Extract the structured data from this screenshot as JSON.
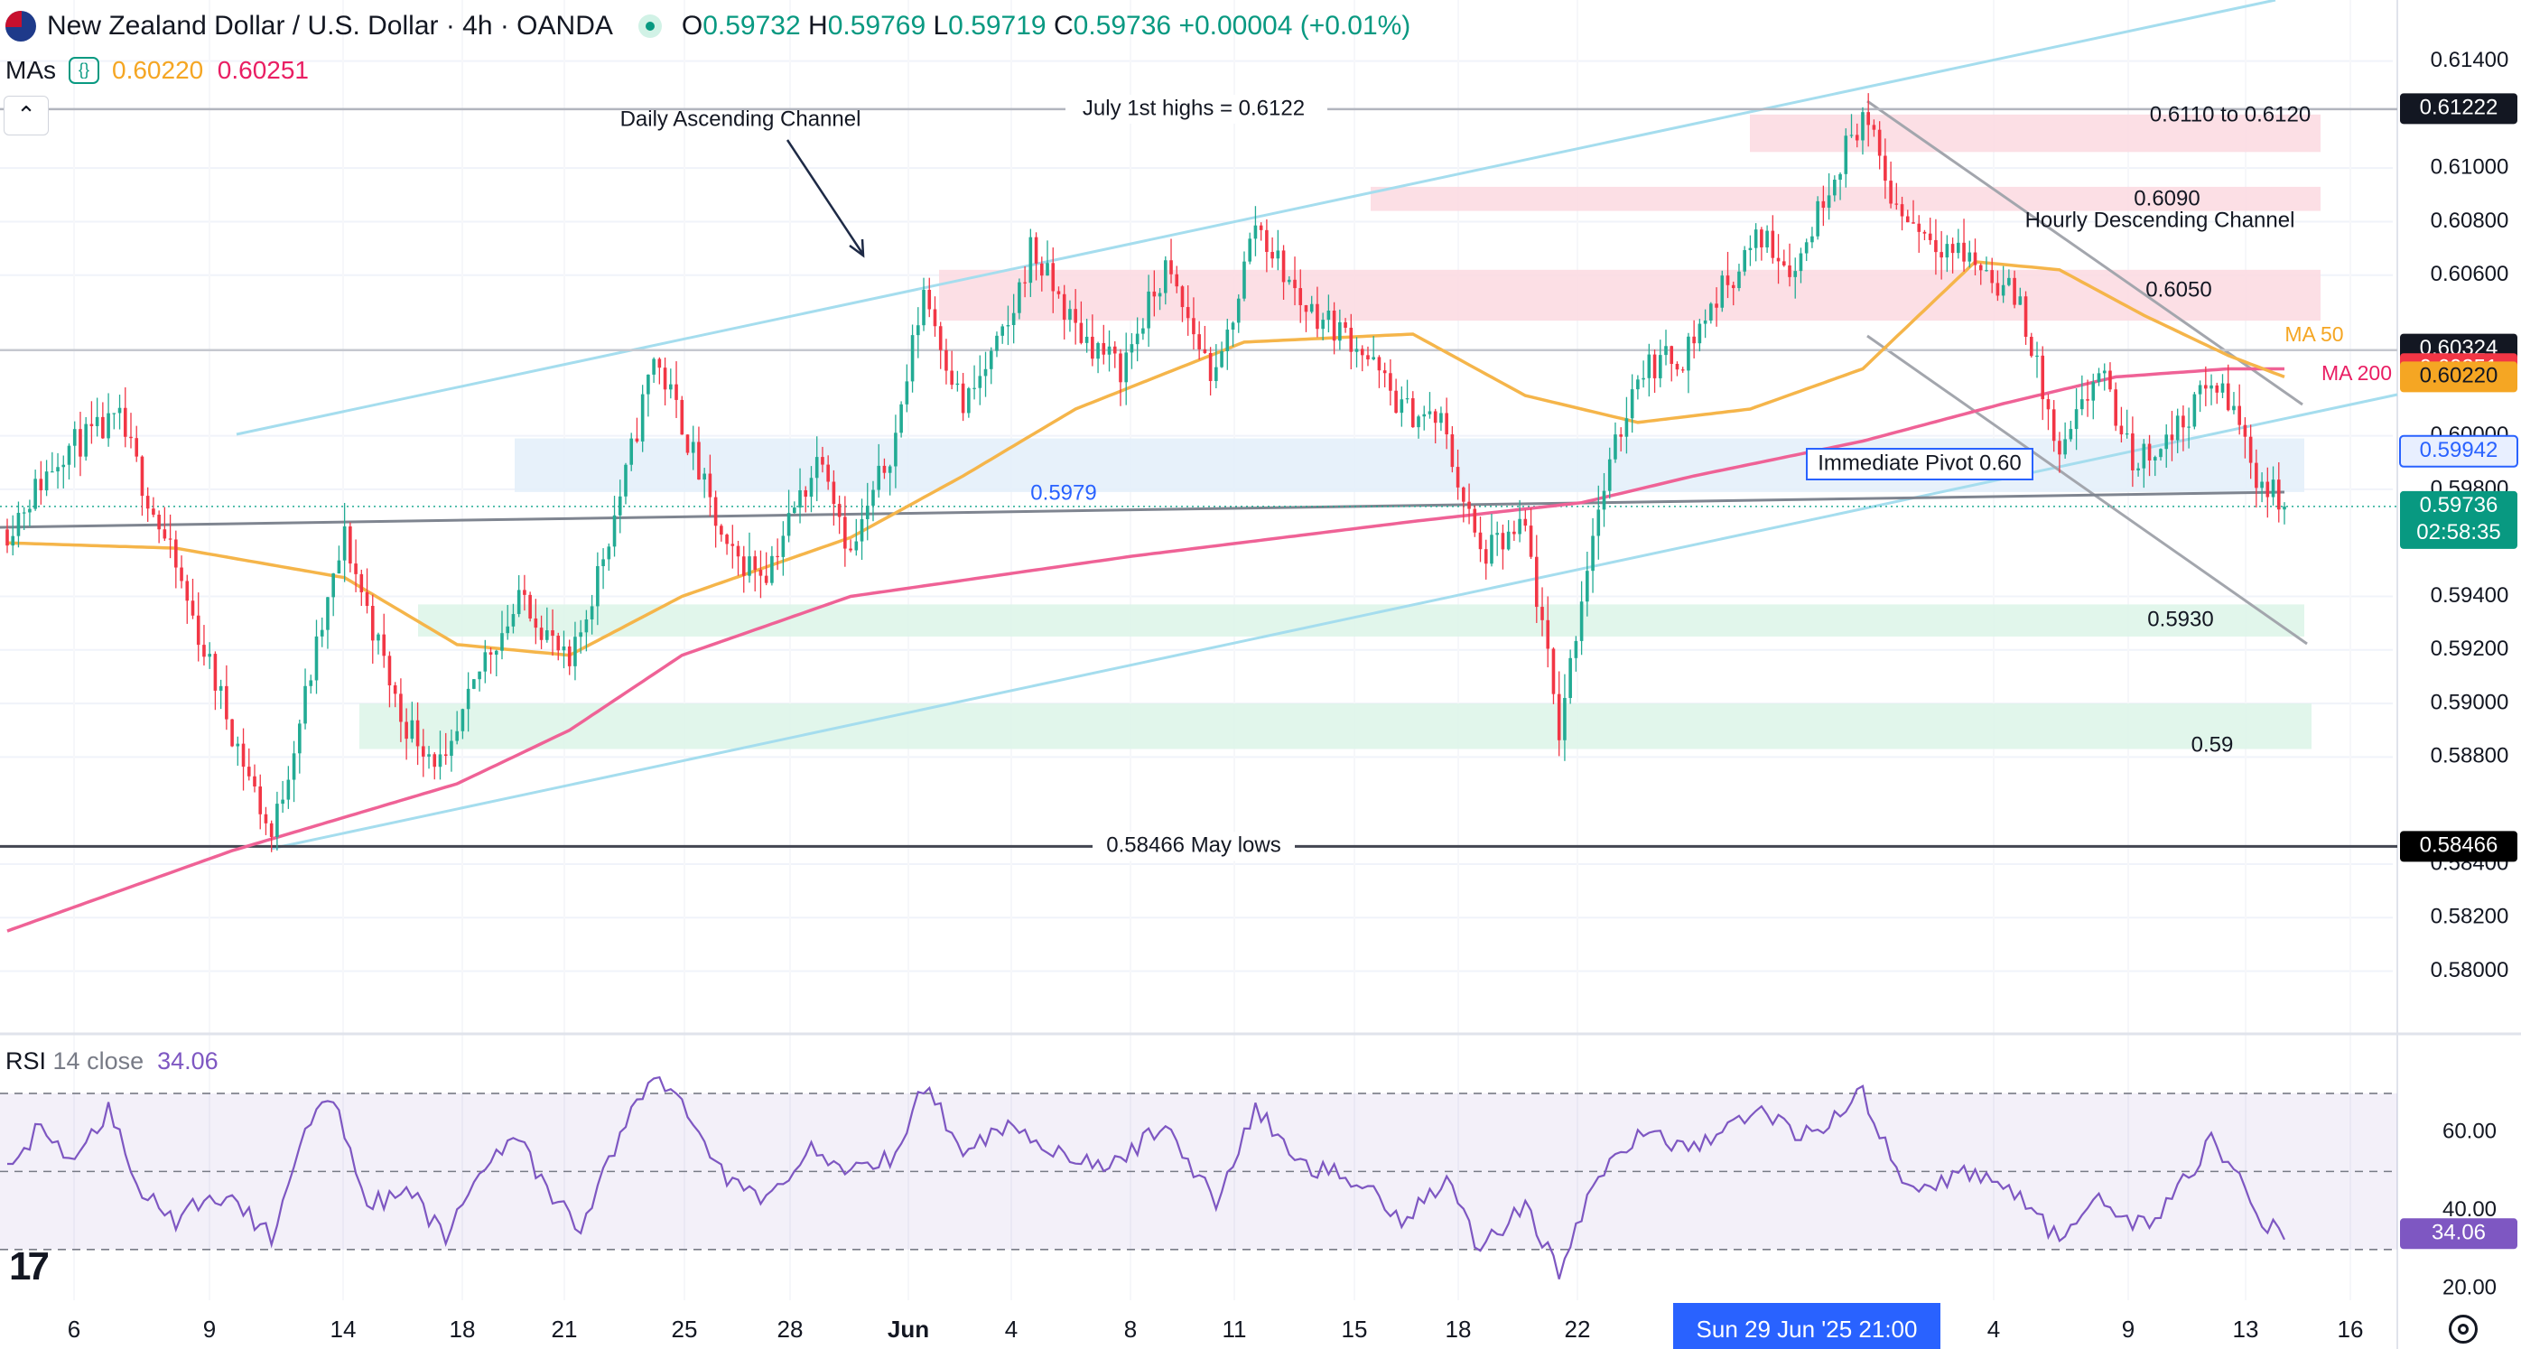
{
  "header": {
    "title": "New Zealand Dollar / U.S. Dollar · 4h · OANDA",
    "o_label": "O",
    "o": "0.59732",
    "h_label": "H",
    "h": "0.59769",
    "l_label": "L",
    "l": "0.59719",
    "c_label": "C",
    "c": "0.59736",
    "change": "+0.00004 (+0.01%)",
    "ma_label": "MAs",
    "ma50_value": "0.60220",
    "ma200_value": "0.60251"
  },
  "rsi": {
    "label": "RSI",
    "params": "14 close",
    "value": "34.06"
  },
  "colors": {
    "up": "#22ab94",
    "down": "#f23645",
    "ma50": "#f5b54a",
    "ma200": "#ef6296",
    "channel": "#a5ddee",
    "rsi": "#7e57c2"
  },
  "icons": {
    "collapse": "chevron-up-icon",
    "settings": "gear-icon",
    "logo": "tradingview-logo-icon",
    "visibility": "eye-icon"
  },
  "chart_data": [
    {
      "type": "candlestick",
      "title": "New Zealand Dollar / U.S. Dollar · 4h · OANDA",
      "x_tick_labels": [
        "6",
        "9",
        "14",
        "18",
        "21",
        "25",
        "28",
        "Jun",
        "4",
        "8",
        "11",
        "15",
        "18",
        "22",
        "4",
        "9",
        "13",
        "16"
      ],
      "crosshair_date_label": "Sun 29 Jun '25   21:00",
      "y_tick_labels": [
        "0.61400",
        "0.61000",
        "0.60800",
        "0.60600",
        "0.60000",
        "0.59800",
        "0.59400",
        "0.59200",
        "0.59000",
        "0.58800",
        "0.58400",
        "0.58200",
        "0.58000"
      ],
      "ylim": [
        0.5785,
        0.6152
      ],
      "price_path_anchors": [
        [
          0,
          0.5965
        ],
        [
          10,
          0.5995
        ],
        [
          20,
          0.6005
        ],
        [
          30,
          0.595
        ],
        [
          40,
          0.589
        ],
        [
          47,
          0.585
        ],
        [
          55,
          0.592
        ],
        [
          60,
          0.5962
        ],
        [
          70,
          0.5895
        ],
        [
          78,
          0.5875
        ],
        [
          85,
          0.5918
        ],
        [
          92,
          0.594
        ],
        [
          100,
          0.5912
        ],
        [
          110,
          0.5985
        ],
        [
          115,
          0.603
        ],
        [
          120,
          0.6005
        ],
        [
          128,
          0.5955
        ],
        [
          135,
          0.595
        ],
        [
          145,
          0.5995
        ],
        [
          150,
          0.5955
        ],
        [
          158,
          0.6
        ],
        [
          163,
          0.6055
        ],
        [
          170,
          0.601
        ],
        [
          178,
          0.604
        ],
        [
          182,
          0.607
        ],
        [
          190,
          0.604
        ],
        [
          198,
          0.6025
        ],
        [
          206,
          0.6062
        ],
        [
          215,
          0.602
        ],
        [
          222,
          0.608
        ],
        [
          230,
          0.605
        ],
        [
          240,
          0.6035
        ],
        [
          248,
          0.601
        ],
        [
          255,
          0.6005
        ],
        [
          262,
          0.5955
        ],
        [
          270,
          0.5965
        ],
        [
          276,
          0.589
        ],
        [
          282,
          0.5965
        ],
        [
          290,
          0.6025
        ],
        [
          298,
          0.603
        ],
        [
          305,
          0.6055
        ],
        [
          312,
          0.6075
        ],
        [
          318,
          0.6062
        ],
        [
          324,
          0.6095
        ],
        [
          330,
          0.612
        ],
        [
          336,
          0.6085
        ],
        [
          342,
          0.6075
        ],
        [
          350,
          0.6065
        ],
        [
          358,
          0.605
        ],
        [
          365,
          0.599
        ],
        [
          372,
          0.6025
        ],
        [
          378,
          0.599
        ],
        [
          385,
          0.6
        ],
        [
          392,
          0.602
        ],
        [
          396,
          0.601
        ],
        [
          400,
          0.5985
        ],
        [
          405,
          0.5974
        ]
      ],
      "ma50": {
        "name": "MA 50",
        "values": [
          [
            0,
            0.596
          ],
          [
            30,
            0.5958
          ],
          [
            60,
            0.5947
          ],
          [
            80,
            0.5922
          ],
          [
            100,
            0.5918
          ],
          [
            120,
            0.594
          ],
          [
            150,
            0.5962
          ],
          [
            170,
            0.5985
          ],
          [
            190,
            0.601
          ],
          [
            220,
            0.6035
          ],
          [
            250,
            0.6038
          ],
          [
            270,
            0.6015
          ],
          [
            290,
            0.6005
          ],
          [
            310,
            0.601
          ],
          [
            330,
            0.6025
          ],
          [
            350,
            0.6065
          ],
          [
            365,
            0.6062
          ],
          [
            380,
            0.6045
          ],
          [
            395,
            0.603
          ],
          [
            405,
            0.6022
          ]
        ]
      },
      "ma200": {
        "name": "MA 200",
        "values": [
          [
            0,
            0.5815
          ],
          [
            40,
            0.5845
          ],
          [
            80,
            0.587
          ],
          [
            100,
            0.589
          ],
          [
            120,
            0.5918
          ],
          [
            150,
            0.594
          ],
          [
            200,
            0.5955
          ],
          [
            250,
            0.5968
          ],
          [
            280,
            0.5975
          ],
          [
            300,
            0.5985
          ],
          [
            330,
            0.5998
          ],
          [
            355,
            0.6012
          ],
          [
            375,
            0.6022
          ],
          [
            395,
            0.6025
          ],
          [
            405,
            0.6025
          ]
        ]
      },
      "zones": [
        {
          "label": "0.6110 to 0.6120",
          "from": 0.6106,
          "to": 0.612
        },
        {
          "label": "0.6090",
          "from": 0.6084,
          "to": 0.6093
        },
        {
          "label": "0.6050",
          "from": 0.6043,
          "to": 0.6062
        },
        {
          "label": "0.5979",
          "from": 0.5979,
          "to": 0.5999
        },
        {
          "label": "0.5930",
          "from": 0.5925,
          "to": 0.5937
        },
        {
          "label": "0.59",
          "from": 0.5883,
          "to": 0.59
        }
      ],
      "levels": [
        {
          "label": "July 1st highs = 0.6122",
          "value": 0.6122
        },
        {
          "label": "0.58466 May lows",
          "value": 0.58466
        },
        {
          "label": "",
          "value": 0.6032
        }
      ],
      "annotations": [
        "Daily Ascending Channel",
        "Hourly Descending Channel",
        "Immediate Pivot 0.60",
        "MA 50",
        "MA 200"
      ],
      "price_badges": [
        {
          "label": "0.61222",
          "value": 0.61222
        },
        {
          "label": "0.60324",
          "value": 0.60324
        },
        {
          "label": "0.60251",
          "value": 0.60251
        },
        {
          "label": "0.60220",
          "value": 0.6022
        },
        {
          "label": "0.59942",
          "value": 0.59942
        },
        {
          "label": "0.59736",
          "value": 0.59736,
          "countdown": "02:58:35"
        },
        {
          "label": "0.58466",
          "value": 0.58466
        }
      ]
    },
    {
      "type": "line",
      "title": "RSI 14 close",
      "y_tick_labels": [
        "60.00",
        "40.00",
        "20.00"
      ],
      "ylim": [
        17,
        76
      ],
      "bands": [
        70,
        50,
        30
      ],
      "last_value": 34.06,
      "values": [
        [
          0,
          50
        ],
        [
          6,
          62
        ],
        [
          12,
          52
        ],
        [
          18,
          66
        ],
        [
          24,
          45
        ],
        [
          30,
          36
        ],
        [
          36,
          45
        ],
        [
          42,
          40
        ],
        [
          47,
          33
        ],
        [
          52,
          58
        ],
        [
          58,
          70
        ],
        [
          64,
          42
        ],
        [
          72,
          44
        ],
        [
          78,
          33
        ],
        [
          84,
          50
        ],
        [
          90,
          60
        ],
        [
          96,
          45
        ],
        [
          102,
          35
        ],
        [
          110,
          63
        ],
        [
          115,
          74
        ],
        [
          120,
          68
        ],
        [
          128,
          48
        ],
        [
          135,
          42
        ],
        [
          142,
          56
        ],
        [
          150,
          50
        ],
        [
          158,
          54
        ],
        [
          163,
          72
        ],
        [
          170,
          56
        ],
        [
          178,
          62
        ],
        [
          186,
          56
        ],
        [
          195,
          50
        ],
        [
          206,
          62
        ],
        [
          215,
          42
        ],
        [
          222,
          66
        ],
        [
          230,
          52
        ],
        [
          240,
          48
        ],
        [
          248,
          38
        ],
        [
          256,
          48
        ],
        [
          262,
          30
        ],
        [
          270,
          42
        ],
        [
          276,
          24
        ],
        [
          282,
          46
        ],
        [
          290,
          60
        ],
        [
          298,
          56
        ],
        [
          305,
          60
        ],
        [
          312,
          66
        ],
        [
          318,
          60
        ],
        [
          324,
          62
        ],
        [
          330,
          70
        ],
        [
          336,
          50
        ],
        [
          342,
          46
        ],
        [
          350,
          50
        ],
        [
          358,
          44
        ],
        [
          365,
          32
        ],
        [
          372,
          42
        ],
        [
          380,
          36
        ],
        [
          386,
          45
        ],
        [
          392,
          58
        ],
        [
          398,
          45
        ],
        [
          402,
          36
        ],
        [
          405,
          34
        ]
      ]
    }
  ]
}
